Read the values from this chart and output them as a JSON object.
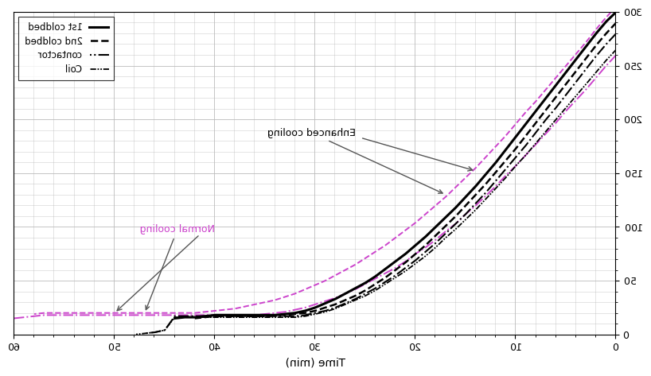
{
  "xlabel": "Time (min)",
  "ylabel": "",
  "xlim": [
    0,
    60
  ],
  "ylim": [
    0,
    300
  ],
  "xticks": [
    0,
    10,
    20,
    30,
    40,
    50,
    60
  ],
  "yticks": [
    0,
    50,
    100,
    150,
    200,
    250,
    300
  ],
  "legend_labels": [
    "1st coldbed",
    "2nd coldbed",
    "contactor",
    "Coil"
  ],
  "annotation_enhanced": "Enhanced cooling",
  "annotation_normal": "Normal cooling",
  "color_black": "#000000",
  "color_pink": "#cc44cc",
  "background": "#ffffff",
  "grid_color": "#bbbbbb",
  "line1_x": [
    0,
    1,
    2,
    3,
    4,
    5,
    6,
    7,
    8,
    9,
    10,
    11,
    12,
    13,
    14,
    15,
    16,
    17,
    18,
    19,
    20,
    21,
    22,
    23,
    24,
    25,
    26,
    27,
    28,
    29,
    30,
    31,
    32,
    33,
    34,
    35,
    36,
    37,
    38,
    39,
    40,
    41,
    42,
    43,
    44
  ],
  "line1_y": [
    300,
    291,
    280,
    268,
    256,
    244,
    232,
    220,
    208,
    196,
    184,
    172,
    160,
    149,
    138,
    128,
    118,
    109,
    100,
    91,
    83,
    75,
    68,
    61,
    54,
    48,
    43,
    38,
    33,
    29,
    25,
    22,
    20,
    19,
    18,
    18,
    18,
    18,
    18,
    18,
    18,
    17,
    16,
    16,
    15
  ],
  "line2_x": [
    0,
    1,
    2,
    3,
    4,
    5,
    6,
    7,
    8,
    9,
    10,
    11,
    12,
    13,
    14,
    15,
    16,
    17,
    18,
    19,
    20,
    21,
    22,
    23,
    24,
    25,
    26,
    27,
    28,
    29,
    30,
    31,
    32,
    33,
    34,
    35,
    36,
    37,
    38,
    39,
    40,
    41,
    42
  ],
  "line2_y": [
    290,
    280,
    269,
    257,
    245,
    233,
    221,
    209,
    197,
    185,
    173,
    162,
    151,
    140,
    130,
    120,
    110,
    101,
    92,
    83,
    75,
    67,
    60,
    53,
    47,
    41,
    36,
    32,
    28,
    25,
    22,
    20,
    19,
    18,
    18,
    17,
    17,
    17,
    17,
    17,
    17,
    16,
    15
  ],
  "line3_x": [
    0,
    1,
    2,
    3,
    4,
    5,
    6,
    7,
    8,
    9,
    10,
    11,
    12,
    13,
    14,
    15,
    16,
    17,
    18,
    19,
    20,
    21,
    22,
    23,
    24,
    25,
    26,
    27,
    28,
    29,
    30,
    31,
    32,
    33,
    34,
    35,
    36,
    37,
    38,
    39,
    40,
    41,
    42,
    43,
    44,
    45,
    46,
    47
  ],
  "line3_y": [
    280,
    270,
    259,
    247,
    235,
    223,
    211,
    200,
    188,
    176,
    165,
    154,
    143,
    132,
    122,
    112,
    103,
    94,
    85,
    77,
    69,
    62,
    55,
    49,
    43,
    38,
    33,
    29,
    25,
    22,
    20,
    18,
    17,
    17,
    17,
    17,
    17,
    17,
    17,
    17,
    17,
    17,
    17,
    17,
    17,
    4,
    2,
    1
  ],
  "line4_x": [
    0,
    1,
    2,
    3,
    4,
    5,
    6,
    7,
    8,
    9,
    10,
    11,
    12,
    13,
    14,
    15,
    16,
    17,
    18,
    19,
    20,
    21,
    22,
    23,
    24,
    25,
    26,
    27,
    28,
    29,
    30,
    31,
    32,
    33,
    34,
    35,
    36,
    37,
    38,
    39,
    40,
    41,
    42,
    43,
    44,
    45,
    46,
    47,
    48
  ],
  "line4_y": [
    265,
    255,
    244,
    233,
    222,
    211,
    200,
    189,
    178,
    167,
    157,
    146,
    136,
    126,
    116,
    107,
    98,
    90,
    81,
    73,
    66,
    59,
    53,
    47,
    41,
    36,
    32,
    28,
    24,
    21,
    19,
    17,
    16,
    16,
    16,
    16,
    16,
    16,
    16,
    16,
    16,
    16,
    16,
    16,
    16,
    4,
    2,
    1,
    0
  ],
  "pink1_x": [
    0,
    1,
    2,
    3,
    4,
    5,
    6,
    7,
    8,
    9,
    10,
    11,
    12,
    13,
    14,
    15,
    16,
    17,
    18,
    19,
    20,
    21,
    22,
    23,
    24,
    25,
    26,
    27,
    28,
    29,
    30,
    31,
    32,
    33,
    34,
    35,
    36,
    37,
    38,
    39,
    40,
    41,
    42,
    43,
    44,
    45,
    46,
    47,
    48,
    49,
    50,
    51,
    52,
    53,
    54,
    55,
    56,
    57,
    58
  ],
  "pink1_y": [
    305,
    295,
    284,
    272,
    261,
    250,
    239,
    228,
    217,
    207,
    196,
    185,
    175,
    165,
    155,
    146,
    137,
    128,
    120,
    112,
    104,
    97,
    90,
    83,
    77,
    71,
    65,
    60,
    55,
    50,
    46,
    42,
    38,
    35,
    32,
    30,
    28,
    26,
    24,
    23,
    22,
    21,
    20,
    20,
    20,
    20,
    20,
    20,
    20,
    20,
    20,
    20,
    20,
    20,
    20,
    20,
    20,
    20,
    19
  ],
  "pink2_x": [
    0,
    1,
    2,
    3,
    4,
    5,
    6,
    7,
    8,
    9,
    10,
    11,
    12,
    13,
    14,
    15,
    16,
    17,
    18,
    19,
    20,
    21,
    22,
    23,
    24,
    25,
    26,
    27,
    28,
    29,
    30,
    31,
    32,
    33,
    34,
    35,
    36,
    37,
    38,
    39,
    40,
    41,
    42,
    43,
    44,
    45,
    46,
    47,
    48,
    49,
    50,
    51,
    52,
    53,
    54,
    55,
    56,
    57,
    58,
    59,
    60
  ],
  "pink2_y": [
    260,
    250,
    239,
    228,
    218,
    208,
    197,
    187,
    177,
    167,
    157,
    148,
    138,
    129,
    120,
    112,
    103,
    96,
    88,
    81,
    75,
    68,
    62,
    57,
    52,
    47,
    42,
    38,
    34,
    31,
    28,
    25,
    23,
    21,
    20,
    19,
    18,
    18,
    18,
    18,
    18,
    18,
    18,
    18,
    18,
    18,
    18,
    18,
    18,
    18,
    18,
    18,
    18,
    18,
    18,
    18,
    18,
    18,
    17,
    16,
    15
  ]
}
